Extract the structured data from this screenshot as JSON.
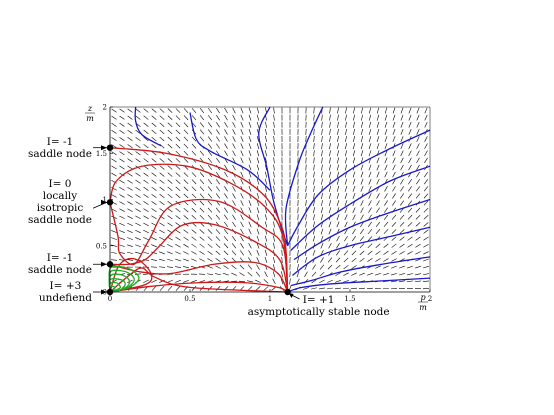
{
  "chart_data": {
    "type": "line",
    "title": "",
    "xlabel": {
      "num": "p",
      "den": "m"
    },
    "ylabel": {
      "num": "z",
      "den": "m"
    },
    "xlim": [
      0,
      2
    ],
    "ylim": [
      0,
      2
    ],
    "xticks": [
      "0",
      "0.5",
      "1",
      "1.5",
      "2"
    ],
    "yticks": [
      "0",
      "0.5",
      "1",
      "1.5",
      "2"
    ],
    "critical_points": [
      {
        "x": 0,
        "y": 1.56,
        "lines": [
          "I= -1",
          "saddle node"
        ]
      },
      {
        "x": 0,
        "y": 0.97,
        "lines": [
          "I= 0",
          "locally",
          "isotropic",
          "saddle node"
        ]
      },
      {
        "x": 0,
        "y": 0.3,
        "lines": [
          "I= -1",
          "saddle node"
        ]
      },
      {
        "x": 0,
        "y": 0,
        "lines": [
          "I= +3",
          "undefiend"
        ]
      },
      {
        "x": 1.11,
        "y": 0,
        "lines": [
          "I= +1",
          "asymptotically stable node"
        ]
      }
    ],
    "series": [
      {
        "color": "#1a1acc",
        "points": [
          [
            0.16,
            2.0
          ],
          [
            0.16,
            1.85
          ],
          [
            0.2,
            1.7
          ],
          [
            0.32,
            1.58
          ]
        ]
      },
      {
        "color": "#1a1acc",
        "points": [
          [
            0.5,
            1.94
          ],
          [
            0.54,
            1.65
          ],
          [
            0.63,
            1.52
          ],
          [
            0.86,
            1.32
          ],
          [
            1.0,
            1.1
          ]
        ]
      },
      {
        "color": "#1a1acc",
        "points": [
          [
            1.0,
            2.0
          ],
          [
            0.93,
            1.72
          ],
          [
            0.98,
            1.35
          ],
          [
            1.02,
            1.0
          ],
          [
            1.07,
            0.7
          ],
          [
            1.11,
            0.5
          ]
        ]
      },
      {
        "color": "#1a1acc",
        "points": [
          [
            1.33,
            2.0
          ],
          [
            1.25,
            1.7
          ],
          [
            1.18,
            1.4
          ],
          [
            1.1,
            0.9
          ],
          [
            1.11,
            0.5
          ]
        ]
      },
      {
        "color": "#1a1acc",
        "points": [
          [
            2.0,
            1.75
          ],
          [
            1.75,
            1.55
          ],
          [
            1.5,
            1.32
          ],
          [
            1.3,
            1.05
          ],
          [
            1.17,
            0.7
          ],
          [
            1.11,
            0.5
          ]
        ]
      },
      {
        "color": "#1a1acc",
        "points": [
          [
            2.0,
            1.36
          ],
          [
            1.75,
            1.2
          ],
          [
            1.5,
            0.95
          ],
          [
            1.3,
            0.72
          ],
          [
            1.13,
            0.45
          ]
        ]
      },
      {
        "color": "#1a1acc",
        "points": [
          [
            2.0,
            1.0
          ],
          [
            1.75,
            0.86
          ],
          [
            1.5,
            0.7
          ],
          [
            1.3,
            0.52
          ],
          [
            1.15,
            0.35
          ]
        ]
      },
      {
        "color": "#1a1acc",
        "points": [
          [
            2.0,
            0.7
          ],
          [
            1.75,
            0.6
          ],
          [
            1.5,
            0.5
          ],
          [
            1.3,
            0.38
          ],
          [
            1.14,
            0.18
          ]
        ]
      },
      {
        "color": "#1a1acc",
        "points": [
          [
            2.0,
            0.38
          ],
          [
            1.7,
            0.3
          ],
          [
            1.45,
            0.22
          ],
          [
            1.25,
            0.12
          ],
          [
            1.13,
            0.07
          ]
        ]
      },
      {
        "color": "#1a1acc",
        "points": [
          [
            2.0,
            0.15
          ],
          [
            1.7,
            0.12
          ],
          [
            1.4,
            0.09
          ],
          [
            1.2,
            0.05
          ],
          [
            1.11,
            0.0
          ]
        ]
      },
      {
        "color": "#cc1a1a",
        "points": [
          [
            0.0,
            1.56
          ],
          [
            0.35,
            1.5
          ],
          [
            0.72,
            1.32
          ],
          [
            0.96,
            1.05
          ],
          [
            1.07,
            0.72
          ],
          [
            1.1,
            0.45
          ],
          [
            1.11,
            0.0
          ]
        ]
      },
      {
        "color": "#cc1a1a",
        "points": [
          [
            0.0,
            0.97
          ],
          [
            0.04,
            1.2
          ],
          [
            0.2,
            1.36
          ],
          [
            0.48,
            1.36
          ],
          [
            0.75,
            1.18
          ],
          [
            0.97,
            0.92
          ],
          [
            1.08,
            0.6
          ],
          [
            1.11,
            0.0
          ]
        ]
      },
      {
        "color": "#cc1a1a",
        "points": [
          [
            0.0,
            0.97
          ],
          [
            0.05,
            0.6
          ],
          [
            0.06,
            0.42
          ],
          [
            0.15,
            0.3
          ],
          [
            0.24,
            0.55
          ],
          [
            0.38,
            0.93
          ],
          [
            0.68,
            0.98
          ],
          [
            0.95,
            0.7
          ],
          [
            1.08,
            0.5
          ],
          [
            1.11,
            0.0
          ]
        ]
      },
      {
        "color": "#cc1a1a",
        "points": [
          [
            0.0,
            0.3
          ],
          [
            0.12,
            0.3
          ],
          [
            0.22,
            0.35
          ],
          [
            0.3,
            0.48
          ],
          [
            0.45,
            0.72
          ],
          [
            0.65,
            0.73
          ],
          [
            0.9,
            0.55
          ],
          [
            1.06,
            0.35
          ],
          [
            1.11,
            0.0
          ]
        ]
      },
      {
        "color": "#cc1a1a",
        "points": [
          [
            0.0,
            0.3
          ],
          [
            0.18,
            0.22
          ],
          [
            0.38,
            0.2
          ],
          [
            0.65,
            0.3
          ],
          [
            0.9,
            0.32
          ],
          [
            1.05,
            0.2
          ],
          [
            1.11,
            0.0
          ]
        ]
      },
      {
        "color": "#cc1a1a",
        "points": [
          [
            0.0,
            0.0
          ],
          [
            0.25,
            0.06
          ],
          [
            0.55,
            0.1
          ],
          [
            0.85,
            0.1
          ],
          [
            1.05,
            0.05
          ],
          [
            1.11,
            0.0
          ]
        ]
      },
      {
        "color": "#cc1a1a",
        "points": [
          [
            0.0,
            0.0
          ],
          [
            0.12,
            0.18
          ],
          [
            0.2,
            0.26
          ],
          [
            0.28,
            0.16
          ],
          [
            0.5,
            0.05
          ],
          [
            1.11,
            0.0
          ]
        ]
      },
      {
        "color": "#cc1a1a",
        "points": [
          [
            0.0,
            0.0
          ],
          [
            0.05,
            0.27
          ],
          [
            0.12,
            0.36
          ],
          [
            0.2,
            0.32
          ],
          [
            0.26,
            0.18
          ],
          [
            0.22,
            0.08
          ],
          [
            0.0,
            0.0
          ]
        ]
      },
      {
        "color": "#22aa22",
        "points": [
          [
            0.0,
            0.0
          ],
          [
            0.0,
            0.25
          ],
          [
            0.08,
            0.27
          ],
          [
            0.15,
            0.22
          ],
          [
            0.18,
            0.14
          ],
          [
            0.12,
            0.05
          ],
          [
            0.0,
            0.0
          ]
        ]
      },
      {
        "color": "#22aa22",
        "points": [
          [
            0.0,
            0.0
          ],
          [
            0.0,
            0.21
          ],
          [
            0.07,
            0.23
          ],
          [
            0.13,
            0.19
          ],
          [
            0.15,
            0.12
          ],
          [
            0.1,
            0.04
          ],
          [
            0.0,
            0.0
          ]
        ]
      },
      {
        "color": "#22aa22",
        "points": [
          [
            0.0,
            0.0
          ],
          [
            0.0,
            0.17
          ],
          [
            0.06,
            0.19
          ],
          [
            0.11,
            0.15
          ],
          [
            0.12,
            0.09
          ],
          [
            0.08,
            0.03
          ],
          [
            0.0,
            0.0
          ]
        ]
      },
      {
        "color": "#22aa22",
        "points": [
          [
            0.0,
            0.0
          ],
          [
            0.0,
            0.13
          ],
          [
            0.05,
            0.14
          ],
          [
            0.09,
            0.11
          ],
          [
            0.09,
            0.06
          ],
          [
            0.06,
            0.02
          ],
          [
            0.0,
            0.0
          ]
        ]
      },
      {
        "color": "#22aa22",
        "points": [
          [
            0.0,
            0.0
          ],
          [
            0.0,
            0.09
          ],
          [
            0.04,
            0.1
          ],
          [
            0.06,
            0.07
          ],
          [
            0.06,
            0.04
          ],
          [
            0.0,
            0.0
          ]
        ]
      },
      {
        "color": "#22aa22",
        "points": [
          [
            0.0,
            0.0
          ],
          [
            0.0,
            0.05
          ],
          [
            0.02,
            0.06
          ],
          [
            0.03,
            0.04
          ],
          [
            0.0,
            0.0
          ]
        ]
      }
    ],
    "colors": {
      "red": "#cc1a1a",
      "blue": "#1a1acc",
      "green": "#22aa22",
      "field": "#000000"
    },
    "grid": false,
    "legend": "none"
  }
}
